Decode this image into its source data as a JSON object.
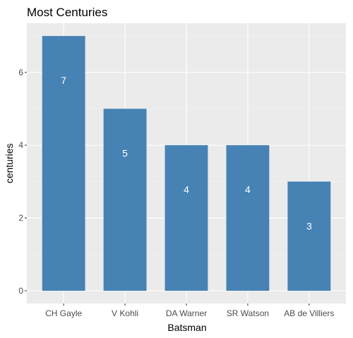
{
  "chart_data": {
    "type": "bar",
    "title": "Most Centuries",
    "xlabel": "Batsman",
    "ylabel": "centuries",
    "categories": [
      "CH Gayle",
      "V Kohli",
      "DA Warner",
      "SR Watson",
      "AB de Villiers"
    ],
    "values": [
      7,
      5,
      4,
      4,
      3
    ],
    "data_labels": [
      "7",
      "5",
      "4",
      "4",
      "3"
    ],
    "y_ticks": [
      0,
      2,
      4,
      6
    ],
    "y_tick_labels": [
      "0",
      "2",
      "4",
      "6"
    ],
    "ylim": [
      -0.35,
      7.35
    ],
    "grid": true,
    "legend": "none",
    "colors": {
      "bar": "#4682b4",
      "panel_background": "#ebebeb",
      "grid_major": "#ffffff",
      "grid_minor": "#f4f4f4",
      "bar_label": "#ffffff"
    }
  }
}
